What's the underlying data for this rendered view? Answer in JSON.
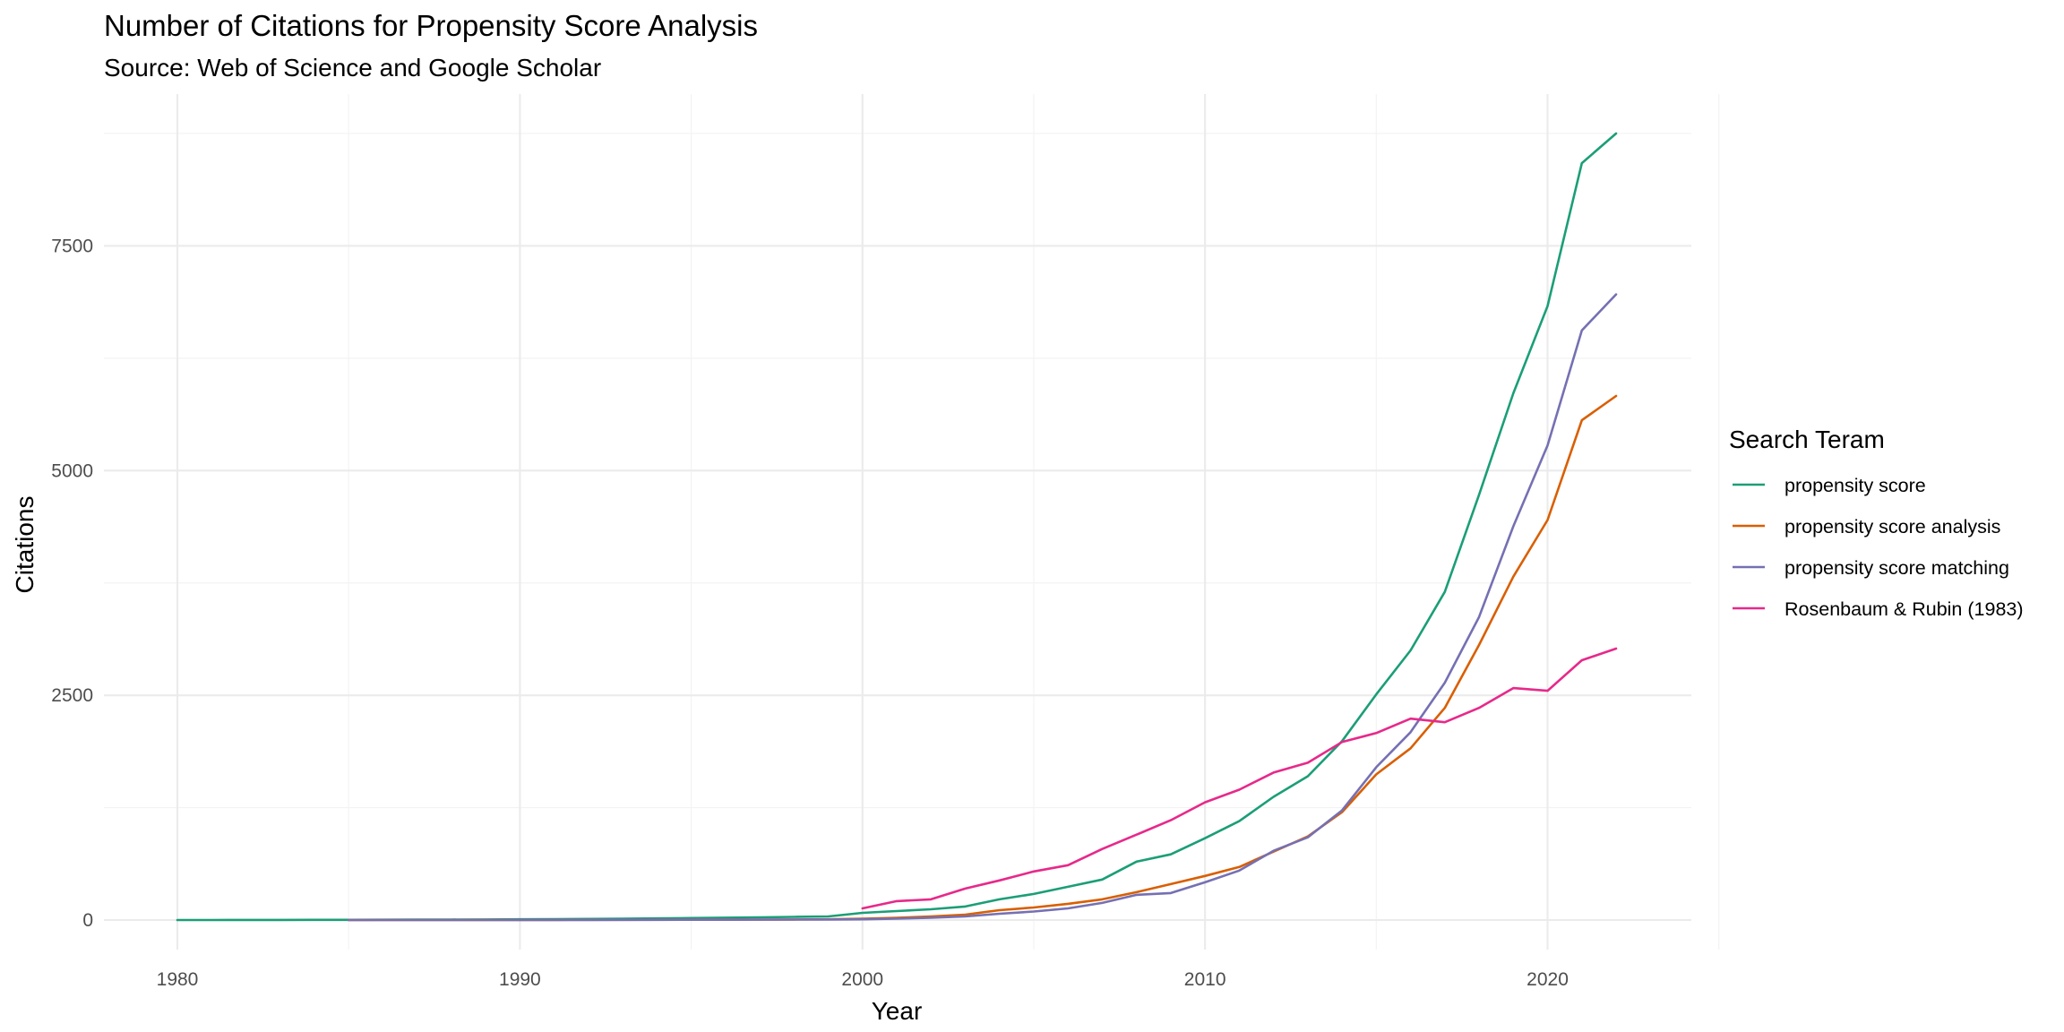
{
  "chart_data": {
    "type": "line",
    "title": "Number of Citations for Propensity Score Analysis",
    "subtitle": "Source: Web of Science and Google Scholar",
    "xlabel": "Year",
    "ylabel": "Citations",
    "xlim": [
      1980,
      2022
    ],
    "ylim": [
      0,
      8750
    ],
    "x_ticks": [
      1980,
      1990,
      2000,
      2010,
      2020
    ],
    "y_ticks": [
      0,
      2500,
      5000,
      7500
    ],
    "grid": true,
    "legend": {
      "title": "Search Teram",
      "position": "right"
    },
    "series": [
      {
        "name": "propensity score",
        "color": "#1b9e77",
        "x": [
          1980,
          1981,
          1982,
          1983,
          1984,
          1985,
          1986,
          1987,
          1988,
          1989,
          1990,
          1991,
          1992,
          1993,
          1994,
          1995,
          1996,
          1997,
          1998,
          1999,
          2000,
          2001,
          2002,
          2003,
          2004,
          2005,
          2006,
          2007,
          2008,
          2009,
          2010,
          2011,
          2012,
          2013,
          2014,
          2015,
          2016,
          2017,
          2018,
          2019,
          2020,
          2021,
          2022
        ],
        "values": [
          0,
          0,
          1,
          1,
          2,
          2,
          3,
          4,
          5,
          6,
          8,
          10,
          12,
          15,
          18,
          22,
          26,
          30,
          35,
          40,
          80,
          100,
          120,
          150,
          230,
          290,
          370,
          450,
          650,
          730,
          910,
          1100,
          1370,
          1600,
          1990,
          2510,
          3000,
          3650,
          4730,
          5860,
          6830,
          8420,
          8750
        ]
      },
      {
        "name": "propensity score analysis",
        "color": "#d95f02",
        "x": [
          1985,
          1986,
          1987,
          1988,
          1989,
          1990,
          1991,
          1992,
          1993,
          1994,
          1995,
          1996,
          1997,
          1998,
          1999,
          2000,
          2001,
          2002,
          2003,
          2004,
          2005,
          2006,
          2007,
          2008,
          2009,
          2010,
          2011,
          2012,
          2013,
          2014,
          2015,
          2016,
          2017,
          2018,
          2019,
          2020,
          2021,
          2022
        ],
        "values": [
          0,
          0,
          0,
          0,
          1,
          1,
          1,
          2,
          2,
          3,
          3,
          4,
          5,
          6,
          8,
          15,
          25,
          40,
          60,
          110,
          140,
          180,
          230,
          310,
          400,
          490,
          590,
          760,
          930,
          1200,
          1620,
          1910,
          2360,
          3060,
          3820,
          4450,
          5560,
          5830
        ]
      },
      {
        "name": "propensity score matching",
        "color": "#7570b3",
        "x": [
          1985,
          1986,
          1987,
          1988,
          1989,
          1990,
          1991,
          1992,
          1993,
          1994,
          1995,
          1996,
          1997,
          1998,
          1999,
          2000,
          2001,
          2002,
          2003,
          2004,
          2005,
          2006,
          2007,
          2008,
          2009,
          2010,
          2011,
          2012,
          2013,
          2014,
          2015,
          2016,
          2017,
          2018,
          2019,
          2020,
          2021,
          2022
        ],
        "values": [
          0,
          0,
          0,
          0,
          0,
          1,
          1,
          1,
          2,
          2,
          3,
          3,
          4,
          5,
          6,
          8,
          15,
          25,
          40,
          70,
          95,
          130,
          190,
          280,
          300,
          420,
          550,
          770,
          920,
          1220,
          1700,
          2090,
          2640,
          3370,
          4380,
          5280,
          6560,
          6960
        ]
      },
      {
        "name": "Rosenbaum & Rubin (1983)",
        "color": "#e7298a",
        "x": [
          2000,
          2001,
          2002,
          2003,
          2004,
          2005,
          2006,
          2007,
          2008,
          2009,
          2010,
          2011,
          2012,
          2013,
          2014,
          2015,
          2016,
          2017,
          2018,
          2019,
          2020,
          2021,
          2022
        ],
        "values": [
          130,
          210,
          230,
          350,
          440,
          540,
          610,
          790,
          950,
          1110,
          1310,
          1450,
          1640,
          1750,
          1980,
          2080,
          2240,
          2200,
          2360,
          2580,
          2550,
          2890,
          3020
        ]
      }
    ]
  }
}
